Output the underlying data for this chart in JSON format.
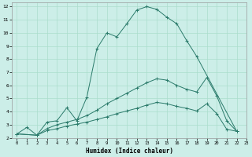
{
  "xlabel": "Humidex (Indice chaleur)",
  "bg_color": "#cceee8",
  "grid_color": "#aaddcc",
  "line_color": "#2a7a6a",
  "xlim": [
    -0.5,
    23
  ],
  "ylim": [
    2,
    12.3
  ],
  "xticks": [
    0,
    1,
    2,
    3,
    4,
    5,
    6,
    7,
    8,
    9,
    10,
    11,
    12,
    13,
    14,
    15,
    16,
    17,
    18,
    19,
    20,
    21,
    22,
    23
  ],
  "yticks": [
    2,
    3,
    4,
    5,
    6,
    7,
    8,
    9,
    10,
    11,
    12
  ],
  "curve1_x": [
    0,
    1,
    2,
    3,
    4,
    5,
    6,
    7,
    8,
    9,
    10,
    11,
    12,
    13,
    14,
    15,
    16,
    17,
    18,
    22
  ],
  "curve1_y": [
    2.3,
    2.8,
    2.2,
    3.2,
    3.3,
    4.3,
    3.3,
    5.1,
    8.8,
    10.0,
    9.7,
    10.7,
    11.75,
    12.0,
    11.8,
    11.2,
    10.7,
    9.4,
    8.2,
    2.5
  ],
  "curve2_x": [
    0,
    2,
    3,
    4,
    5,
    6,
    7,
    8,
    9,
    10,
    11,
    12,
    13,
    14,
    15,
    16,
    17,
    18,
    19,
    20,
    21,
    22
  ],
  "curve2_y": [
    2.3,
    2.2,
    2.7,
    3.0,
    3.2,
    3.4,
    3.7,
    4.1,
    4.6,
    5.0,
    5.4,
    5.8,
    6.2,
    6.5,
    6.4,
    6.0,
    5.7,
    5.5,
    6.6,
    5.2,
    3.3,
    2.5
  ],
  "curve3_x": [
    0,
    2,
    3,
    4,
    5,
    6,
    7,
    8,
    9,
    10,
    11,
    12,
    13,
    14,
    15,
    16,
    17,
    18,
    19,
    20,
    21,
    22
  ],
  "curve3_y": [
    2.3,
    2.2,
    2.55,
    2.7,
    2.9,
    3.05,
    3.2,
    3.4,
    3.6,
    3.85,
    4.05,
    4.25,
    4.5,
    4.7,
    4.6,
    4.4,
    4.25,
    4.05,
    4.6,
    3.85,
    2.65,
    2.5
  ]
}
